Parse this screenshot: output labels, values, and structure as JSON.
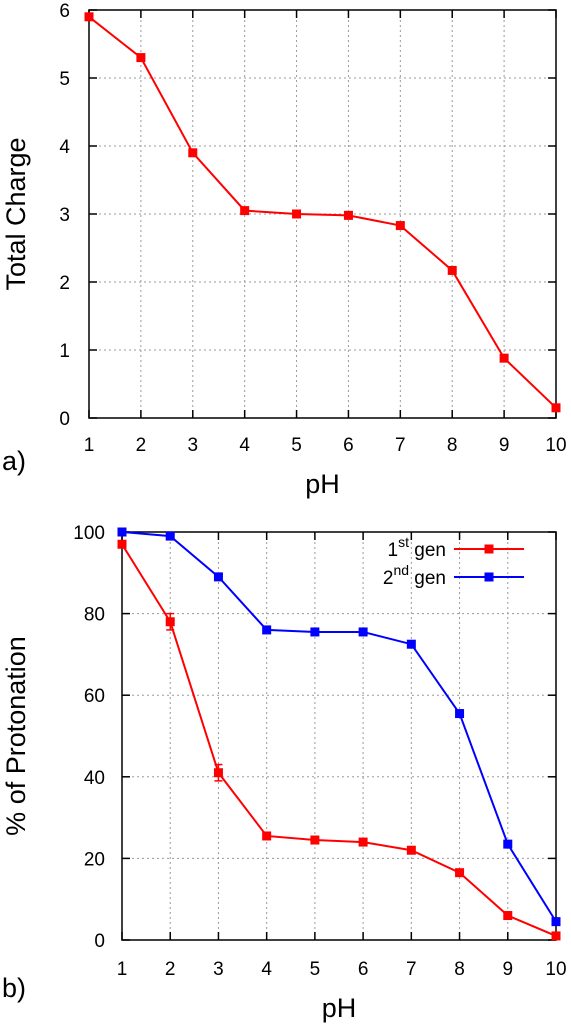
{
  "chart_data": [
    {
      "type": "line",
      "panel_label": "a)",
      "xlabel": "pH",
      "ylabel": "Total Charge",
      "xlim": [
        1,
        10
      ],
      "ylim": [
        0,
        6
      ],
      "grid": true,
      "x_ticks": [
        "1",
        "2",
        "3",
        "4",
        "5",
        "6",
        "7",
        "8",
        "9",
        "10"
      ],
      "y_ticks": [
        "0",
        "1",
        "2",
        "3",
        "4",
        "5",
        "6"
      ],
      "x": [
        1,
        2,
        3,
        4,
        5,
        6,
        7,
        8,
        9,
        10
      ],
      "series": [
        {
          "color": "#ff0000",
          "marker": "square",
          "values": [
            5.9,
            5.3,
            3.9,
            3.05,
            3.0,
            2.98,
            2.83,
            2.17,
            0.88,
            0.15
          ]
        }
      ]
    },
    {
      "type": "line",
      "panel_label": "b)",
      "xlabel": "pH",
      "ylabel": "% of Protonation",
      "xlim": [
        1,
        10
      ],
      "ylim": [
        0,
        100
      ],
      "grid": true,
      "legend_position": "top-right",
      "x_ticks": [
        "1",
        "2",
        "3",
        "4",
        "5",
        "6",
        "7",
        "8",
        "9",
        "10"
      ],
      "y_ticks": [
        "0",
        "20",
        "40",
        "60",
        "80",
        "100"
      ],
      "x": [
        1,
        2,
        3,
        4,
        5,
        6,
        7,
        8,
        9,
        10
      ],
      "series": [
        {
          "name_num": "1",
          "name_sup": "st",
          "name_text": " gen",
          "color": "#ff0000",
          "marker": "square",
          "values": [
            97,
            78,
            41,
            25.5,
            24.5,
            24,
            22,
            16.5,
            6,
            1
          ],
          "errors": [
            0,
            2,
            2,
            0,
            0,
            0,
            0,
            0,
            0,
            0
          ]
        },
        {
          "name_num": "2",
          "name_sup": "nd",
          "name_text": " gen",
          "color": "#0000ff",
          "marker": "square",
          "values": [
            100,
            99,
            89,
            76,
            75.5,
            75.5,
            72.5,
            55.5,
            23.5,
            4.5
          ],
          "errors": [
            0,
            0,
            0,
            0,
            0,
            0,
            0,
            0,
            0,
            0
          ]
        }
      ]
    }
  ]
}
